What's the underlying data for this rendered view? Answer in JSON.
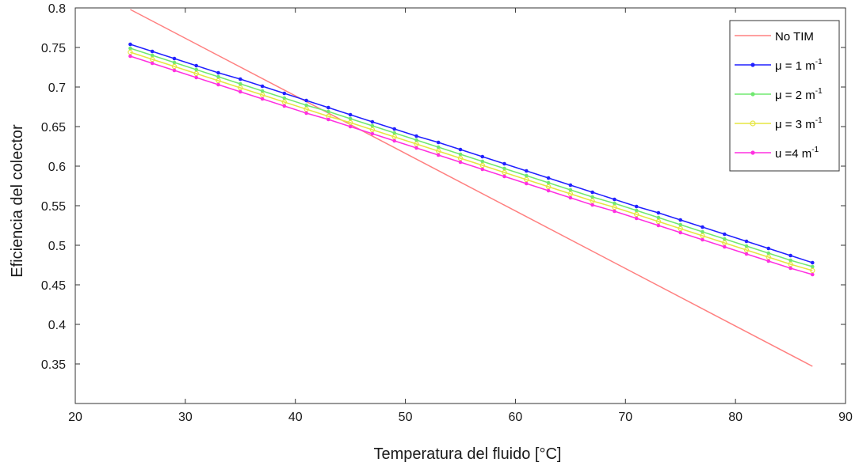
{
  "chart_data": {
    "type": "line",
    "title": "",
    "xlabel": "Temperatura del fluido [°C]",
    "ylabel": "Eficiencia del colector",
    "xlim": [
      20,
      90
    ],
    "ylim": [
      0.3,
      0.8
    ],
    "xticks": [
      20,
      30,
      40,
      50,
      60,
      70,
      80,
      90
    ],
    "xtick_labels": [
      "20",
      "30",
      "40",
      "50",
      "60",
      "70",
      "80",
      "90"
    ],
    "yticks": [
      0.35,
      0.4,
      0.45,
      0.5,
      0.55,
      0.6,
      0.65,
      0.7,
      0.75,
      0.8
    ],
    "ytick_labels": [
      "0.35",
      "0.4",
      "0.45",
      "0.5",
      "0.55",
      "0.6",
      "0.65",
      "0.7",
      "0.75",
      "0.8"
    ],
    "grid": false,
    "legend_position": "top-right",
    "series": [
      {
        "name": "No TIM",
        "legend_main": "No TIM",
        "legend_sup": "",
        "color": "#ff8080",
        "marker": "none",
        "x": [
          25,
          87
        ],
        "y": [
          0.798,
          0.347
        ]
      },
      {
        "name": "μ = 1 m-1",
        "legend_main": "μ = 1 m",
        "legend_sup": "-1",
        "color": "#2020ff",
        "marker": "dot",
        "x": [
          25,
          27,
          29,
          31,
          33,
          35,
          37,
          39,
          41,
          43,
          45,
          47,
          49,
          51,
          53,
          55,
          57,
          59,
          61,
          63,
          65,
          67,
          69,
          71,
          73,
          75,
          77,
          79,
          81,
          83,
          85,
          87
        ],
        "y": [
          0.754,
          0.745,
          0.736,
          0.727,
          0.718,
          0.71,
          0.701,
          0.692,
          0.683,
          0.674,
          0.665,
          0.656,
          0.647,
          0.638,
          0.63,
          0.621,
          0.612,
          0.603,
          0.594,
          0.585,
          0.576,
          0.567,
          0.558,
          0.549,
          0.541,
          0.532,
          0.523,
          0.514,
          0.505,
          0.496,
          0.487,
          0.478
        ]
      },
      {
        "name": "μ = 2 m-1",
        "legend_main": "μ = 2 m",
        "legend_sup": "-1",
        "color": "#70e870",
        "marker": "dot",
        "x": [
          25,
          27,
          29,
          31,
          33,
          35,
          37,
          39,
          41,
          43,
          45,
          47,
          49,
          51,
          53,
          55,
          57,
          59,
          61,
          63,
          65,
          67,
          69,
          71,
          73,
          75,
          77,
          79,
          81,
          83,
          85,
          87
        ],
        "y": [
          0.749,
          0.74,
          0.731,
          0.722,
          0.713,
          0.704,
          0.695,
          0.686,
          0.677,
          0.669,
          0.66,
          0.651,
          0.642,
          0.633,
          0.624,
          0.615,
          0.606,
          0.597,
          0.588,
          0.579,
          0.57,
          0.561,
          0.553,
          0.544,
          0.535,
          0.526,
          0.517,
          0.508,
          0.499,
          0.49,
          0.481,
          0.473
        ]
      },
      {
        "name": "μ = 3 m-1",
        "legend_main": "μ = 3 m",
        "legend_sup": "-1",
        "color": "#e6e640",
        "marker": "circle",
        "x": [
          25,
          27,
          29,
          31,
          33,
          35,
          37,
          39,
          41,
          43,
          45,
          47,
          49,
          51,
          53,
          55,
          57,
          59,
          61,
          63,
          65,
          67,
          69,
          71,
          73,
          75,
          77,
          79,
          81,
          83,
          85,
          87
        ],
        "y": [
          0.744,
          0.735,
          0.726,
          0.717,
          0.708,
          0.699,
          0.69,
          0.681,
          0.672,
          0.663,
          0.655,
          0.646,
          0.637,
          0.628,
          0.619,
          0.61,
          0.601,
          0.592,
          0.583,
          0.574,
          0.565,
          0.556,
          0.548,
          0.539,
          0.53,
          0.521,
          0.512,
          0.503,
          0.494,
          0.485,
          0.476,
          0.468
        ]
      },
      {
        "name": "u = 4 m-1",
        "legend_main": "u =4 m",
        "legend_sup": "-1",
        "color": "#ff30e0",
        "marker": "dot",
        "x": [
          25,
          27,
          29,
          31,
          33,
          35,
          37,
          39,
          41,
          43,
          45,
          47,
          49,
          51,
          53,
          55,
          57,
          59,
          61,
          63,
          65,
          67,
          69,
          71,
          73,
          75,
          77,
          79,
          81,
          83,
          85,
          87
        ],
        "y": [
          0.739,
          0.73,
          0.721,
          0.712,
          0.703,
          0.694,
          0.685,
          0.676,
          0.667,
          0.659,
          0.65,
          0.641,
          0.632,
          0.623,
          0.614,
          0.605,
          0.596,
          0.587,
          0.578,
          0.569,
          0.56,
          0.551,
          0.543,
          0.534,
          0.525,
          0.516,
          0.507,
          0.498,
          0.489,
          0.48,
          0.471,
          0.463
        ]
      }
    ]
  }
}
